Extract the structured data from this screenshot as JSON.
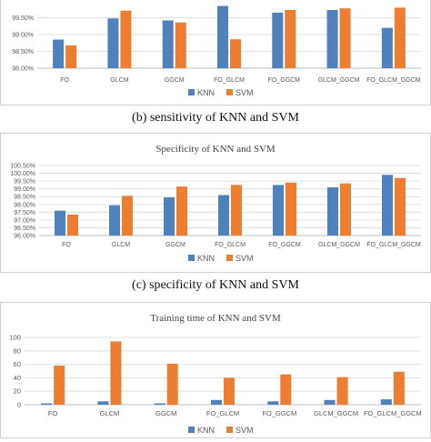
{
  "colors": {
    "knn": "#4f81bd",
    "svm": "#ed7d31",
    "grid": "#d9d9d9",
    "axis": "#bfbfbf",
    "text": "#595959"
  },
  "captions": {
    "b": "(b) sensitivity of KNN and SVM",
    "c": "(c)  specificity of KNN and SVM"
  },
  "chart_data": [
    {
      "type": "bar",
      "title": "",
      "categories": [
        "FO",
        "GLCM",
        "GGCM",
        "FO_GLCM",
        "FO_GGCM",
        "GLCM_GGCM",
        "FO_GLCM_GGCM"
      ],
      "series": [
        {
          "name": "KNN",
          "values": [
            98.85,
            99.48,
            99.42,
            99.85,
            99.65,
            99.73,
            99.2
          ]
        },
        {
          "name": "SVM",
          "values": [
            98.68,
            99.71,
            99.36,
            98.86,
            99.73,
            99.78,
            99.8
          ]
        }
      ],
      "ylim": [
        98.0,
        100.0
      ],
      "yticks": [
        "98.00%",
        "98.50%",
        "99.00%",
        "99.50%"
      ],
      "grid": true,
      "legend": "bottom"
    },
    {
      "type": "bar",
      "title": "Specificity of KNN and SVM",
      "categories": [
        "FO",
        "GLCM",
        "GGCM",
        "FO_GLCM",
        "FO_GGCM",
        "GLCM_GGCM",
        "FO_GLCM_GGCM"
      ],
      "series": [
        {
          "name": "KNN",
          "values": [
            97.6,
            97.95,
            98.45,
            98.6,
            99.25,
            99.1,
            99.9
          ]
        },
        {
          "name": "SVM",
          "values": [
            97.35,
            98.55,
            99.15,
            99.25,
            99.4,
            99.35,
            99.7
          ]
        }
      ],
      "ylim": [
        96.0,
        100.5
      ],
      "yticks": [
        "96.00%",
        "96.50%",
        "97.00%",
        "97.50%",
        "98.00%",
        "98.50%",
        "99.00%",
        "99.50%",
        "100.00%",
        "100.50%"
      ],
      "grid": true,
      "legend": "bottom"
    },
    {
      "type": "bar",
      "title": "Training time of KNN and SVM",
      "categories": [
        "FO",
        "GLCM",
        "GGCM",
        "FO_GLCM",
        "FO_GGCM",
        "GLCM_GGCM",
        "FO_GLCM_GGCM"
      ],
      "series": [
        {
          "name": "KNN",
          "values": [
            2,
            5,
            2,
            7,
            5,
            7,
            8
          ]
        },
        {
          "name": "SVM",
          "values": [
            58,
            94,
            61,
            40,
            45,
            41,
            49
          ]
        }
      ],
      "ylim": [
        0,
        100
      ],
      "yticks": [
        "0",
        "20",
        "40",
        "60",
        "80",
        "100"
      ],
      "grid": true,
      "legend": "bottom"
    }
  ]
}
